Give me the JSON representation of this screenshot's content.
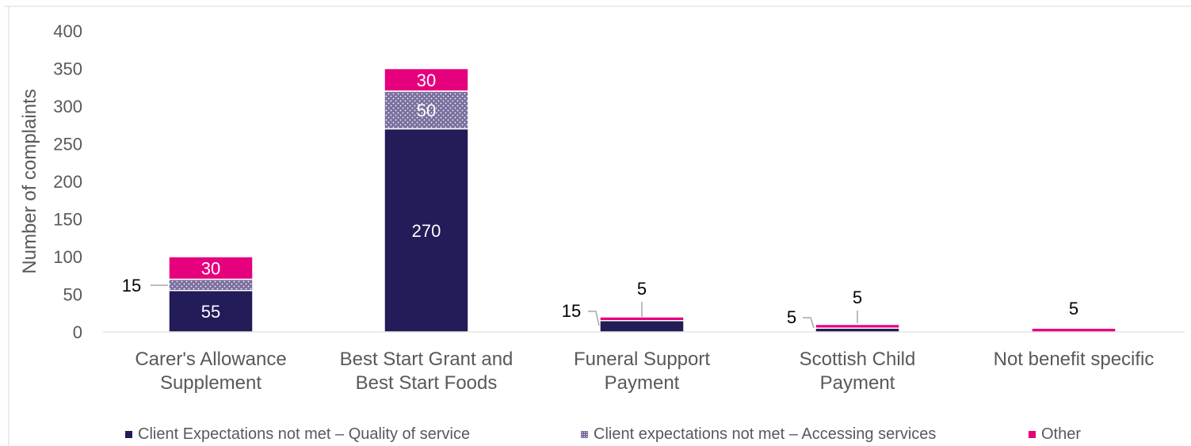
{
  "chart_data": {
    "type": "bar",
    "stacked": true,
    "title": "",
    "xlabel": "",
    "ylabel": "Number of complaints",
    "ylim": [
      0,
      400
    ],
    "yticks": [
      0,
      50,
      100,
      150,
      200,
      250,
      300,
      350,
      400
    ],
    "grid": false,
    "legend_position": "bottom",
    "categories": [
      [
        "Carer's Allowance",
        "Supplement"
      ],
      [
        "Best Start Grant and",
        "Best Start Foods"
      ],
      [
        "Funeral Support",
        "Payment"
      ],
      [
        "Scottish Child",
        "Payment"
      ],
      [
        "Not benefit specific"
      ]
    ],
    "series": [
      {
        "name": "Client Expectations not met – Quality of service",
        "color": "#221C58",
        "pattern": "solid",
        "values": [
          55,
          270,
          15,
          5,
          0
        ],
        "labels": [
          "55",
          "270",
          "15",
          "5",
          ""
        ]
      },
      {
        "name": "Client expectations not met – Accessing services",
        "color": "#7B6F9E",
        "pattern": "dotted",
        "values": [
          15,
          50,
          0,
          0,
          0
        ],
        "labels": [
          "15",
          "50",
          "",
          "",
          ""
        ]
      },
      {
        "name": "Other",
        "color": "#E6007E",
        "pattern": "solid",
        "values": [
          30,
          30,
          5,
          5,
          5
        ],
        "labels": [
          "30",
          "30",
          "5",
          "5",
          "5"
        ]
      }
    ]
  }
}
